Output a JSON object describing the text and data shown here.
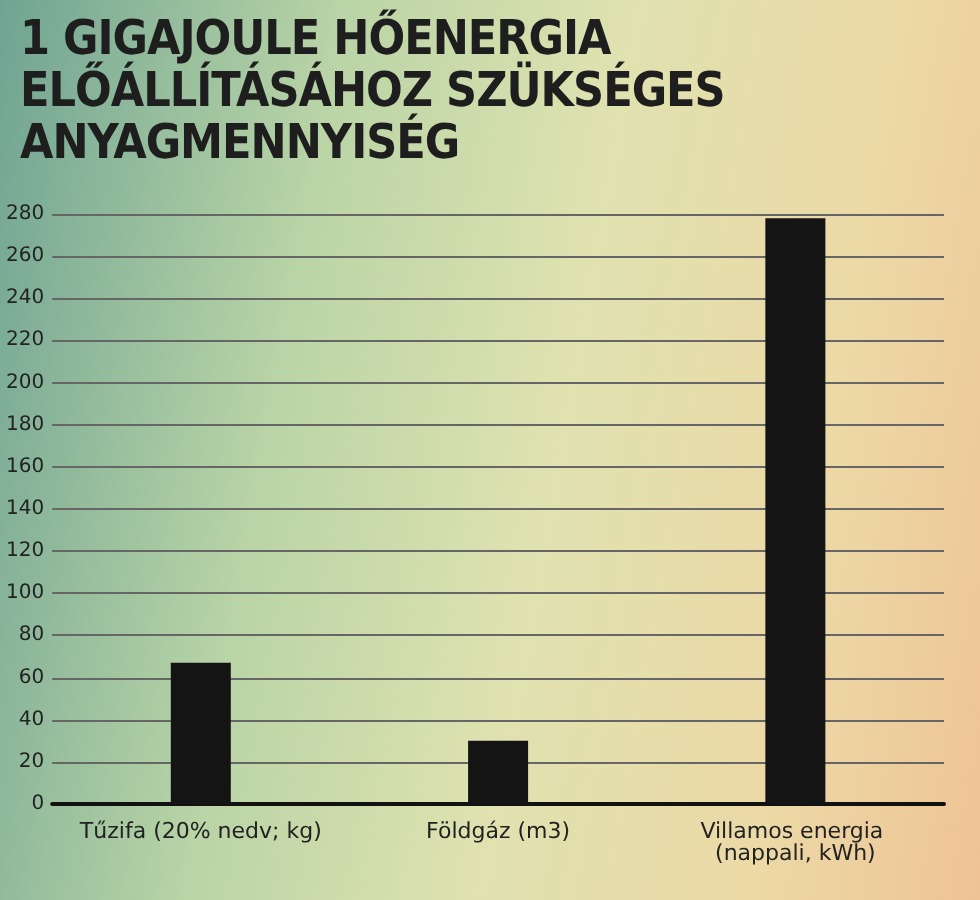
{
  "chart_data": {
    "type": "bar",
    "title": "1 GIGAJOULE HŐENERGIA ELŐÁLLÍTÁSÁHOZ SZÜKSÉGES ANYAGMENNYISÉG",
    "categories": [
      "Tűzifa (20% nedv; kg)",
      "Földgáz (m3)",
      "Villamos energia (nappali, kWh)"
    ],
    "values": [
      67,
      30,
      278
    ],
    "color": "#141414",
    "ylim": [
      0,
      280
    ],
    "yticks": [
      0,
      20,
      40,
      60,
      80,
      100,
      120,
      140,
      160,
      180,
      200,
      220,
      240,
      260,
      280
    ],
    "grid": "y"
  }
}
